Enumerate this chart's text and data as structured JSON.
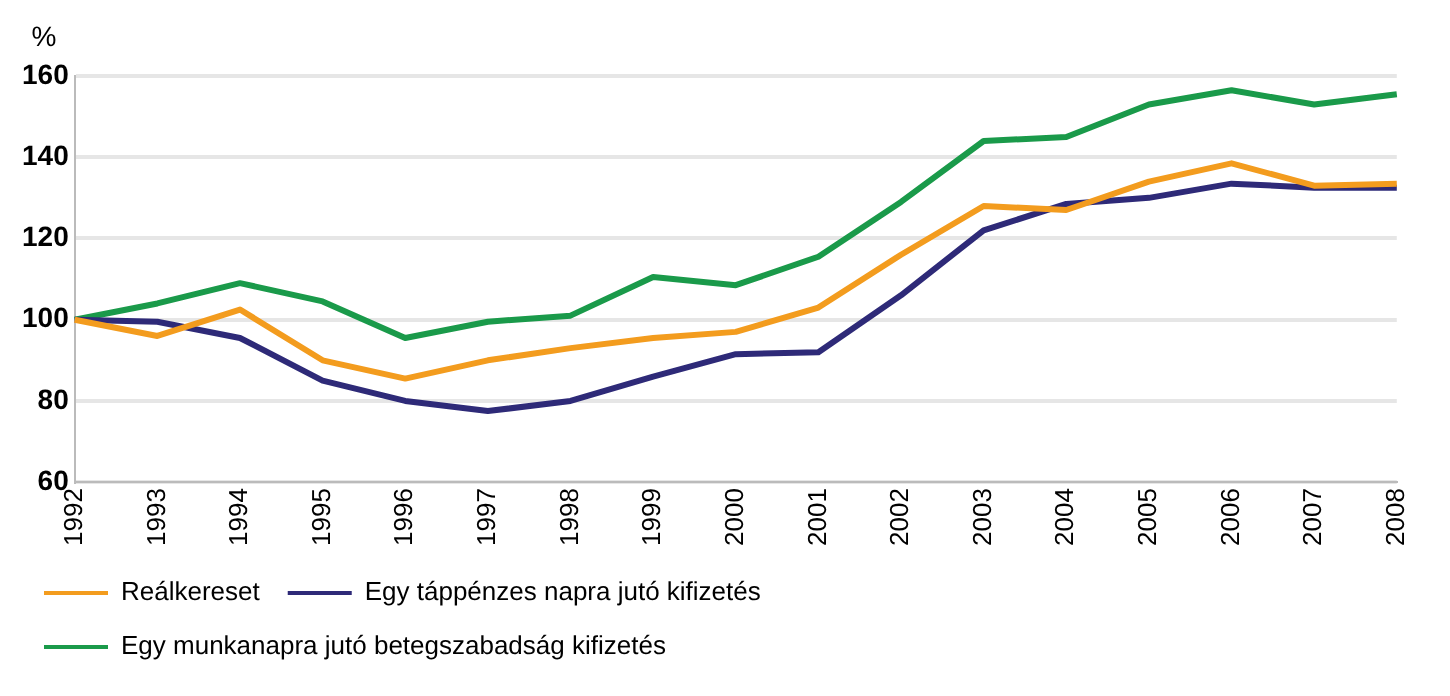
{
  "chart_data": {
    "type": "line",
    "ylabel": "%",
    "categories": [
      "1992",
      "1993",
      "1994",
      "1995",
      "1996",
      "1997",
      "1998",
      "1999",
      "2000",
      "2001",
      "2002",
      "2003",
      "2004",
      "2005",
      "2006",
      "2007",
      "2008"
    ],
    "series": [
      {
        "name": "Reálkereset",
        "color": "#f39c1e",
        "values": [
          100,
          96,
          102.5,
          90,
          85.5,
          90,
          93,
          95.5,
          97,
          103,
          116,
          128,
          127,
          134,
          138.5,
          133,
          133.5
        ]
      },
      {
        "name": "Egy táppénzes napra jutó kifizetés",
        "color": "#2e2a78",
        "values": [
          100,
          99.5,
          95.5,
          85,
          80,
          77.5,
          80,
          86,
          91.5,
          92,
          106,
          122,
          128.5,
          130,
          133.5,
          132.5,
          132.5
        ]
      },
      {
        "name": "Egy munkanapra jutó betegszabadság kifizetés",
        "color": "#1a9a4a",
        "values": [
          100,
          104,
          109,
          104.5,
          95.5,
          99.5,
          101,
          110.5,
          108.5,
          115.5,
          129,
          144,
          145,
          153,
          156.5,
          153,
          155.5
        ]
      }
    ],
    "ylim": [
      60,
      160
    ],
    "yticks": [
      60,
      80,
      100,
      120,
      140,
      160
    ],
    "grid": "y",
    "legend": "bottom",
    "marker": "none",
    "line_style": "solid"
  }
}
